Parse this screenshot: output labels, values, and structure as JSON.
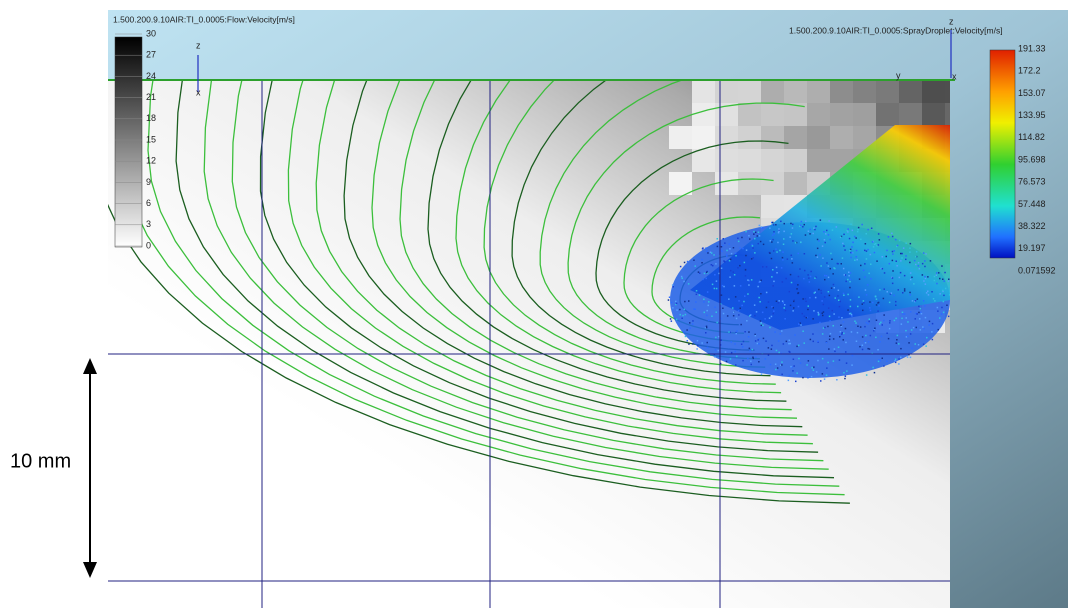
{
  "header": {
    "flow_title": "1.500.200.9.10AIR:TI_0.0005:Flow:Velocity[m/s]",
    "spray_title": "1.500.200.9.10AIR:TI_0.0005:SprayDroplet:Velocity[m/s]"
  },
  "flow_legend": {
    "labels": [
      "30",
      "27",
      "24",
      "21",
      "18",
      "15",
      "12",
      "9",
      "6",
      "3",
      "0"
    ]
  },
  "spray_legend": {
    "labels": [
      "191.33",
      "172.2",
      "153.07",
      "133.95",
      "114.82",
      "95.698",
      "76.573",
      "57.448",
      "38.322",
      "19.197",
      "0.071592"
    ]
  },
  "axes": {
    "left_z": "z",
    "left_x": "x",
    "right_z": "z",
    "right_y": "y",
    "right_x": "x"
  },
  "scale_bar": {
    "label": "10 mm"
  }
}
